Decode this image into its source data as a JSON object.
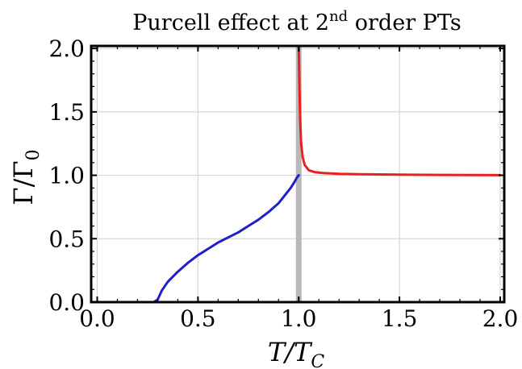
{
  "chart_data": {
    "type": "line",
    "title": {
      "text_before": "Purcell effect at 2",
      "superscript": "nd",
      "text_after": " order PTs"
    },
    "xlabel": {
      "main": "T/T",
      "subscript": "C"
    },
    "ylabel": {
      "main": "Γ/Γ",
      "subscript": "0"
    },
    "xlim": [
      -0.03,
      2.02
    ],
    "ylim": [
      0.0,
      2.02
    ],
    "x_ticks": [
      {
        "value": 0.0,
        "label": "0.0"
      },
      {
        "value": 0.5,
        "label": "0.5"
      },
      {
        "value": 1.0,
        "label": "1.0"
      },
      {
        "value": 1.5,
        "label": "1.5"
      },
      {
        "value": 2.0,
        "label": "2.0"
      }
    ],
    "y_ticks": [
      {
        "value": 0.0,
        "label": "0.0"
      },
      {
        "value": 0.5,
        "label": "0.5"
      },
      {
        "value": 1.0,
        "label": "1.0"
      },
      {
        "value": 1.5,
        "label": "1.5"
      },
      {
        "value": 2.0,
        "label": "2.0"
      }
    ],
    "grid": true,
    "critical_line": {
      "x": 1.0,
      "color": "#b8b8b8"
    },
    "series": [
      {
        "color": "#2020c8",
        "x": [
          0.0,
          0.1,
          0.2,
          0.28,
          0.3,
          0.32,
          0.35,
          0.4,
          0.45,
          0.5,
          0.55,
          0.6,
          0.65,
          0.7,
          0.75,
          0.8,
          0.85,
          0.9,
          0.93,
          0.96,
          0.98,
          0.99,
          1.0
        ],
        "y": [
          0.0,
          0.0,
          0.0,
          0.0,
          0.02,
          0.09,
          0.16,
          0.24,
          0.31,
          0.37,
          0.42,
          0.47,
          0.51,
          0.55,
          0.6,
          0.65,
          0.71,
          0.78,
          0.84,
          0.9,
          0.95,
          0.98,
          1.0
        ]
      },
      {
        "color": "#e82020",
        "x": [
          1.0,
          1.003,
          1.007,
          1.012,
          1.02,
          1.03,
          1.05,
          1.08,
          1.12,
          1.2,
          1.3,
          1.5,
          1.7,
          2.0
        ],
        "y": [
          2.02,
          1.75,
          1.45,
          1.25,
          1.14,
          1.08,
          1.04,
          1.025,
          1.018,
          1.012,
          1.008,
          1.005,
          1.003,
          1.001
        ]
      }
    ],
    "colors": {
      "grid": "#d6d6d6",
      "frame": "#000000"
    }
  }
}
